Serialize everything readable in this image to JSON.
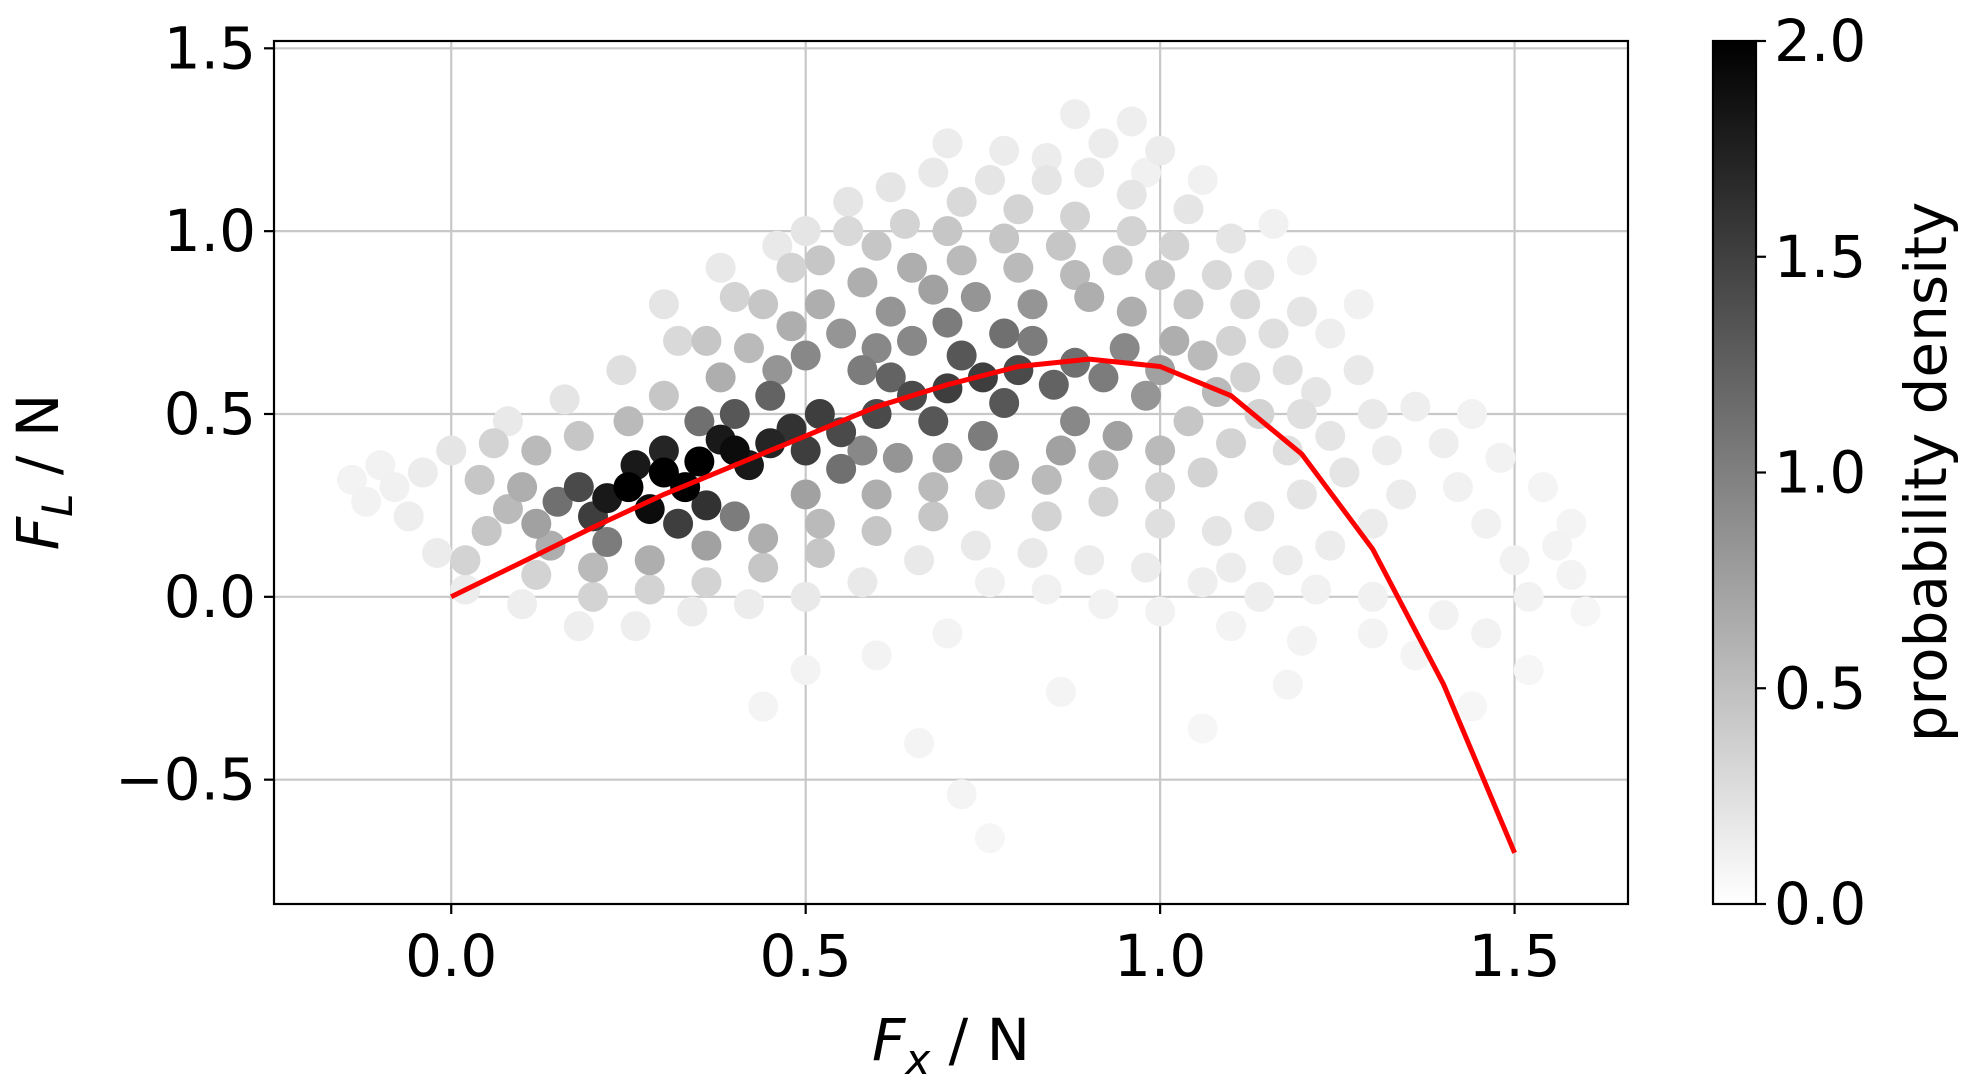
{
  "chart_data": {
    "type": "scatter",
    "title": "",
    "xlabel": {
      "main": "F",
      "sub": "x",
      "unit": " / N"
    },
    "ylabel": {
      "main": "F",
      "sub": "L",
      "unit": " / N"
    },
    "xlim": [
      -0.25,
      1.66
    ],
    "ylim": [
      -0.84,
      1.52
    ],
    "xticks": [
      {
        "v": 0.0,
        "label": "0.0"
      },
      {
        "v": 0.5,
        "label": "0.5"
      },
      {
        "v": 1.0,
        "label": "1.0"
      },
      {
        "v": 1.5,
        "label": "1.5"
      }
    ],
    "yticks": [
      {
        "v": -0.5,
        "label": "−0.5"
      },
      {
        "v": 0.0,
        "label": "0.0"
      },
      {
        "v": 0.5,
        "label": "0.5"
      },
      {
        "v": 1.0,
        "label": "1.0"
      },
      {
        "v": 1.5,
        "label": "1.5"
      }
    ],
    "grid": true,
    "scatter_series": {
      "colormap": "greys",
      "color_encodes": "probability density",
      "points": [
        [
          0.25,
          0.3,
          2.0
        ],
        [
          0.3,
          0.34,
          2.0
        ],
        [
          0.35,
          0.37,
          2.0
        ],
        [
          0.4,
          0.4,
          1.9
        ],
        [
          0.28,
          0.24,
          1.9
        ],
        [
          0.33,
          0.3,
          2.0
        ],
        [
          0.22,
          0.27,
          1.8
        ],
        [
          0.38,
          0.43,
          1.8
        ],
        [
          0.45,
          0.42,
          1.7
        ],
        [
          0.42,
          0.36,
          1.8
        ],
        [
          0.3,
          0.4,
          1.7
        ],
        [
          0.26,
          0.36,
          1.8
        ],
        [
          0.36,
          0.25,
          1.6
        ],
        [
          0.2,
          0.22,
          1.5
        ],
        [
          0.48,
          0.46,
          1.6
        ],
        [
          0.52,
          0.5,
          1.5
        ],
        [
          0.5,
          0.4,
          1.5
        ],
        [
          0.55,
          0.45,
          1.4
        ],
        [
          0.32,
          0.2,
          1.5
        ],
        [
          0.18,
          0.3,
          1.4
        ],
        [
          0.6,
          0.5,
          1.4
        ],
        [
          0.65,
          0.55,
          1.4
        ],
        [
          0.7,
          0.57,
          1.5
        ],
        [
          0.75,
          0.6,
          1.5
        ],
        [
          0.8,
          0.62,
          1.4
        ],
        [
          0.72,
          0.66,
          1.3
        ],
        [
          0.78,
          0.53,
          1.3
        ],
        [
          0.85,
          0.58,
          1.2
        ],
        [
          0.68,
          0.48,
          1.3
        ],
        [
          0.62,
          0.6,
          1.2
        ],
        [
          0.88,
          0.64,
          1.1
        ],
        [
          0.92,
          0.6,
          1.0
        ],
        [
          0.58,
          0.62,
          1.0
        ],
        [
          0.55,
          0.35,
          1.1
        ],
        [
          0.45,
          0.55,
          1.2
        ],
        [
          0.4,
          0.5,
          1.3
        ],
        [
          0.35,
          0.48,
          1.1
        ],
        [
          0.15,
          0.26,
          1.1
        ],
        [
          0.22,
          0.15,
          1.0
        ],
        [
          0.4,
          0.22,
          1.0
        ],
        [
          0.7,
          0.75,
          1.0
        ],
        [
          0.78,
          0.72,
          1.1
        ],
        [
          0.82,
          0.7,
          1.0
        ],
        [
          0.65,
          0.7,
          0.9
        ],
        [
          0.6,
          0.68,
          0.9
        ],
        [
          0.95,
          0.68,
          0.9
        ],
        [
          0.98,
          0.55,
          0.8
        ],
        [
          0.88,
          0.48,
          0.9
        ],
        [
          0.75,
          0.44,
          1.0
        ],
        [
          0.82,
          0.8,
          0.8
        ],
        [
          0.74,
          0.82,
          0.8
        ],
        [
          0.68,
          0.84,
          0.7
        ],
        [
          0.62,
          0.78,
          0.8
        ],
        [
          0.55,
          0.72,
          0.8
        ],
        [
          0.5,
          0.66,
          0.9
        ],
        [
          0.46,
          0.62,
          0.8
        ],
        [
          0.58,
          0.4,
          0.9
        ],
        [
          0.63,
          0.38,
          0.8
        ],
        [
          0.7,
          0.38,
          0.7
        ],
        [
          0.78,
          0.36,
          0.7
        ],
        [
          0.86,
          0.4,
          0.7
        ],
        [
          0.94,
          0.44,
          0.7
        ],
        [
          1.0,
          0.62,
          0.7
        ],
        [
          1.02,
          0.7,
          0.6
        ],
        [
          0.96,
          0.78,
          0.6
        ],
        [
          0.9,
          0.82,
          0.6
        ],
        [
          0.88,
          0.88,
          0.5
        ],
        [
          0.8,
          0.9,
          0.5
        ],
        [
          0.72,
          0.92,
          0.5
        ],
        [
          0.65,
          0.9,
          0.6
        ],
        [
          0.58,
          0.86,
          0.6
        ],
        [
          0.52,
          0.8,
          0.6
        ],
        [
          0.48,
          0.74,
          0.6
        ],
        [
          0.42,
          0.68,
          0.5
        ],
        [
          0.38,
          0.6,
          0.6
        ],
        [
          0.12,
          0.2,
          0.7
        ],
        [
          0.1,
          0.3,
          0.6
        ],
        [
          0.08,
          0.24,
          0.5
        ],
        [
          0.14,
          0.14,
          0.6
        ],
        [
          0.2,
          0.08,
          0.5
        ],
        [
          0.28,
          0.1,
          0.6
        ],
        [
          0.36,
          0.14,
          0.7
        ],
        [
          0.44,
          0.16,
          0.6
        ],
        [
          0.5,
          0.28,
          0.7
        ],
        [
          0.52,
          0.2,
          0.5
        ],
        [
          0.6,
          0.28,
          0.6
        ],
        [
          0.68,
          0.3,
          0.5
        ],
        [
          0.05,
          0.18,
          0.4
        ],
        [
          0.04,
          0.32,
          0.4
        ],
        [
          0.06,
          0.42,
          0.3
        ],
        [
          0.12,
          0.4,
          0.5
        ],
        [
          0.18,
          0.44,
          0.4
        ],
        [
          0.25,
          0.48,
          0.5
        ],
        [
          0.3,
          0.55,
          0.4
        ],
        [
          0.36,
          0.7,
          0.4
        ],
        [
          0.44,
          0.8,
          0.4
        ],
        [
          0.52,
          0.92,
          0.4
        ],
        [
          0.6,
          0.96,
          0.4
        ],
        [
          0.7,
          1.0,
          0.4
        ],
        [
          0.78,
          0.98,
          0.4
        ],
        [
          0.86,
          0.96,
          0.4
        ],
        [
          0.94,
          0.92,
          0.4
        ],
        [
          1.0,
          0.88,
          0.4
        ],
        [
          1.04,
          0.8,
          0.4
        ],
        [
          1.06,
          0.66,
          0.5
        ],
        [
          1.08,
          0.56,
          0.5
        ],
        [
          1.04,
          0.48,
          0.4
        ],
        [
          1.0,
          0.4,
          0.5
        ],
        [
          0.92,
          0.36,
          0.5
        ],
        [
          0.84,
          0.32,
          0.5
        ],
        [
          0.76,
          0.28,
          0.4
        ],
        [
          0.68,
          0.22,
          0.4
        ],
        [
          0.6,
          0.18,
          0.4
        ],
        [
          0.52,
          0.12,
          0.4
        ],
        [
          0.44,
          0.08,
          0.4
        ],
        [
          0.36,
          0.04,
          0.3
        ],
        [
          0.28,
          0.02,
          0.3
        ],
        [
          0.2,
          0.0,
          0.3
        ],
        [
          0.12,
          0.06,
          0.3
        ],
        [
          0.02,
          0.1,
          0.3
        ],
        [
          1.1,
          0.7,
          0.3
        ],
        [
          1.12,
          0.6,
          0.3
        ],
        [
          1.14,
          0.5,
          0.3
        ],
        [
          1.1,
          0.42,
          0.3
        ],
        [
          1.06,
          0.34,
          0.3
        ],
        [
          1.0,
          0.3,
          0.3
        ],
        [
          0.92,
          0.26,
          0.3
        ],
        [
          0.84,
          0.22,
          0.3
        ],
        [
          1.12,
          0.8,
          0.25
        ],
        [
          1.08,
          0.88,
          0.25
        ],
        [
          1.02,
          0.96,
          0.3
        ],
        [
          0.96,
          1.0,
          0.3
        ],
        [
          0.88,
          1.04,
          0.3
        ],
        [
          0.8,
          1.06,
          0.3
        ],
        [
          0.72,
          1.08,
          0.25
        ],
        [
          0.64,
          1.02,
          0.3
        ],
        [
          0.56,
          1.0,
          0.25
        ],
        [
          0.48,
          0.9,
          0.3
        ],
        [
          0.4,
          0.82,
          0.3
        ],
        [
          0.32,
          0.7,
          0.25
        ],
        [
          1.18,
          0.62,
          0.2
        ],
        [
          1.2,
          0.5,
          0.2
        ],
        [
          1.18,
          0.4,
          0.2
        ],
        [
          1.22,
          0.56,
          0.15
        ],
        [
          1.24,
          0.44,
          0.15
        ],
        [
          1.26,
          0.34,
          0.15
        ],
        [
          1.2,
          0.28,
          0.15
        ],
        [
          1.14,
          0.22,
          0.15
        ],
        [
          1.08,
          0.18,
          0.15
        ],
        [
          1.0,
          0.2,
          0.2
        ],
        [
          1.16,
          0.72,
          0.2
        ],
        [
          1.2,
          0.78,
          0.15
        ],
        [
          1.14,
          0.88,
          0.15
        ],
        [
          1.1,
          0.98,
          0.15
        ],
        [
          1.04,
          1.06,
          0.15
        ],
        [
          0.96,
          1.1,
          0.15
        ],
        [
          0.9,
          1.16,
          0.12
        ],
        [
          0.84,
          1.14,
          0.15
        ],
        [
          0.76,
          1.14,
          0.15
        ],
        [
          0.68,
          1.16,
          0.12
        ],
        [
          0.92,
          1.24,
          0.1
        ],
        [
          1.0,
          1.22,
          0.1
        ],
        [
          0.84,
          1.2,
          0.1
        ],
        [
          0.78,
          1.22,
          0.1
        ],
        [
          0.7,
          1.24,
          0.1
        ],
        [
          0.62,
          1.12,
          0.15
        ],
        [
          0.56,
          1.08,
          0.15
        ],
        [
          0.5,
          1.0,
          0.15
        ],
        [
          0.96,
          1.3,
          0.08
        ],
        [
          0.88,
          1.32,
          0.08
        ],
        [
          1.28,
          0.62,
          0.12
        ],
        [
          1.3,
          0.5,
          0.12
        ],
        [
          1.32,
          0.4,
          0.1
        ],
        [
          1.34,
          0.28,
          0.1
        ],
        [
          1.3,
          0.2,
          0.1
        ],
        [
          1.24,
          0.14,
          0.1
        ],
        [
          1.18,
          0.1,
          0.1
        ],
        [
          1.1,
          0.08,
          0.1
        ],
        [
          1.36,
          0.52,
          0.08
        ],
        [
          1.4,
          0.42,
          0.08
        ],
        [
          1.42,
          0.3,
          0.06
        ],
        [
          1.46,
          0.2,
          0.06
        ],
        [
          1.5,
          0.1,
          0.05
        ],
        [
          1.52,
          0.0,
          0.05
        ],
        [
          1.44,
          0.5,
          0.05
        ],
        [
          1.48,
          0.38,
          0.05
        ],
        [
          1.56,
          0.14,
          0.04
        ],
        [
          1.58,
          0.06,
          0.04
        ],
        [
          1.46,
          -0.1,
          0.05
        ],
        [
          1.4,
          -0.05,
          0.05
        ],
        [
          1.3,
          0.0,
          0.06
        ],
        [
          1.22,
          0.02,
          0.06
        ],
        [
          1.14,
          0.0,
          0.08
        ],
        [
          1.06,
          0.04,
          0.08
        ],
        [
          0.98,
          0.08,
          0.1
        ],
        [
          0.9,
          0.1,
          0.1
        ],
        [
          0.82,
          0.12,
          0.12
        ],
        [
          0.74,
          0.14,
          0.12
        ],
        [
          0.66,
          0.1,
          0.12
        ],
        [
          0.58,
          0.04,
          0.12
        ],
        [
          0.5,
          0.0,
          0.12
        ],
        [
          0.42,
          -0.02,
          0.1
        ],
        [
          0.34,
          -0.04,
          0.1
        ],
        [
          0.26,
          -0.08,
          0.08
        ],
        [
          0.18,
          -0.08,
          0.08
        ],
        [
          0.1,
          -0.02,
          0.08
        ],
        [
          0.02,
          0.02,
          0.1
        ],
        [
          -0.02,
          0.12,
          0.1
        ],
        [
          -0.06,
          0.22,
          0.08
        ],
        [
          -0.04,
          0.34,
          0.1
        ],
        [
          0.0,
          0.4,
          0.15
        ],
        [
          -0.1,
          0.36,
          0.05
        ],
        [
          -0.14,
          0.32,
          0.04
        ],
        [
          -0.12,
          0.26,
          0.05
        ],
        [
          -0.08,
          0.3,
          0.06
        ],
        [
          0.08,
          0.48,
          0.12
        ],
        [
          0.16,
          0.54,
          0.15
        ],
        [
          0.24,
          0.62,
          0.2
        ],
        [
          0.3,
          0.8,
          0.15
        ],
        [
          0.38,
          0.9,
          0.12
        ],
        [
          0.46,
          0.96,
          0.12
        ],
        [
          1.24,
          0.72,
          0.08
        ],
        [
          1.28,
          0.8,
          0.06
        ],
        [
          1.2,
          0.92,
          0.06
        ],
        [
          1.16,
          1.02,
          0.06
        ],
        [
          1.06,
          1.14,
          0.06
        ],
        [
          0.98,
          1.16,
          0.06
        ],
        [
          1.3,
          -0.1,
          0.04
        ],
        [
          1.2,
          -0.12,
          0.04
        ],
        [
          1.1,
          -0.08,
          0.04
        ],
        [
          1.0,
          -0.04,
          0.05
        ],
        [
          0.92,
          -0.02,
          0.05
        ],
        [
          0.84,
          0.02,
          0.06
        ],
        [
          0.76,
          0.04,
          0.06
        ],
        [
          0.7,
          -0.1,
          0.04
        ],
        [
          0.6,
          -0.16,
          0.04
        ],
        [
          0.5,
          -0.2,
          0.04
        ],
        [
          0.44,
          -0.3,
          0.03
        ],
        [
          0.66,
          -0.4,
          0.03
        ],
        [
          0.72,
          -0.54,
          0.03
        ],
        [
          0.76,
          -0.66,
          0.02
        ],
        [
          1.06,
          -0.36,
          0.02
        ],
        [
          1.18,
          -0.24,
          0.03
        ],
        [
          1.36,
          -0.16,
          0.03
        ],
        [
          1.44,
          -0.3,
          0.02
        ],
        [
          1.52,
          -0.2,
          0.02
        ],
        [
          1.58,
          0.2,
          0.03
        ],
        [
          1.54,
          0.3,
          0.03
        ],
        [
          1.6,
          -0.04,
          0.02
        ],
        [
          0.86,
          -0.26,
          0.03
        ]
      ]
    },
    "line_series": {
      "color": "#ff0000",
      "function": "quadratic-cubic fit",
      "points": [
        [
          0.0,
          0.0
        ],
        [
          0.1,
          0.095
        ],
        [
          0.2,
          0.19
        ],
        [
          0.3,
          0.28
        ],
        [
          0.4,
          0.36
        ],
        [
          0.5,
          0.44
        ],
        [
          0.6,
          0.52
        ],
        [
          0.7,
          0.58
        ],
        [
          0.8,
          0.63
        ],
        [
          0.9,
          0.65
        ],
        [
          1.0,
          0.63
        ],
        [
          1.1,
          0.55
        ],
        [
          1.2,
          0.39
        ],
        [
          1.3,
          0.13
        ],
        [
          1.4,
          -0.24
        ],
        [
          1.5,
          -0.7
        ]
      ]
    },
    "colorbar": {
      "label": "probability density",
      "min": 0.0,
      "max": 2.0,
      "ticks": [
        {
          "v": 0.0,
          "label": "0.0"
        },
        {
          "v": 0.5,
          "label": "0.5"
        },
        {
          "v": 1.0,
          "label": "1.0"
        },
        {
          "v": 1.5,
          "label": "1.5"
        },
        {
          "v": 2.0,
          "label": "2.0"
        }
      ]
    }
  }
}
